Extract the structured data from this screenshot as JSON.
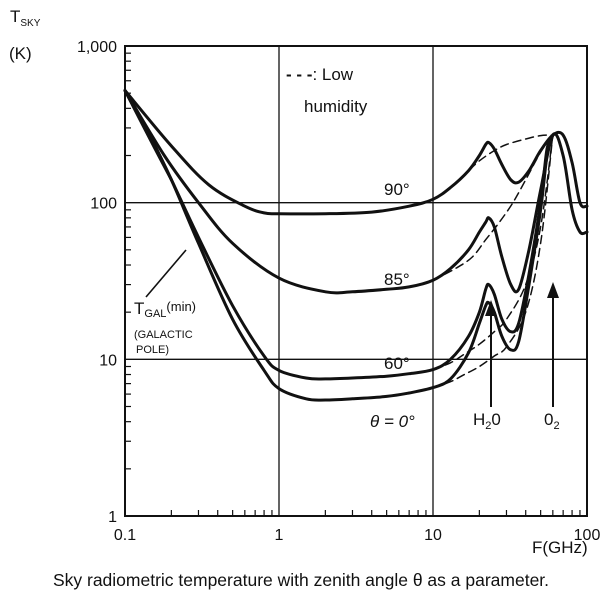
{
  "chart_data": {
    "type": "line",
    "x_scale": "log",
    "y_scale": "log",
    "xlim": [
      0.1,
      100
    ],
    "ylim": [
      1,
      1000
    ],
    "x_ticks": [
      0.1,
      1,
      10,
      100
    ],
    "x_tick_labels": [
      "0.1",
      "1",
      "10",
      "100"
    ],
    "y_ticks": [
      1,
      10,
      100,
      1000
    ],
    "y_tick_labels": [
      "1",
      "10",
      "100",
      "1,000"
    ],
    "grid": "major decades only",
    "xlabel": "F(GHz)",
    "ylabel_main": "T",
    "ylabel_sub": "SKY",
    "ylabel_unit": "(K)",
    "legend": {
      "dash": "- - -",
      "line1": ": Low",
      "line2": "humidity",
      "placement": "top-center"
    },
    "series": [
      {
        "name": "90°",
        "style": "solid",
        "x": [
          0.1,
          0.2,
          0.35,
          0.6,
          0.8,
          1,
          2,
          4,
          7,
          10,
          13,
          17,
          20,
          22,
          23,
          25,
          28,
          32,
          36,
          42,
          50,
          60,
          70,
          80,
          90,
          100
        ],
        "y": [
          520,
          230,
          130,
          95,
          86,
          85,
          85,
          87,
          95,
          105,
          125,
          160,
          200,
          235,
          242,
          220,
          175,
          140,
          135,
          160,
          215,
          270,
          270,
          180,
          100,
          95
        ]
      },
      {
        "name": "85°",
        "style": "solid",
        "x": [
          0.1,
          0.18,
          0.3,
          0.5,
          1,
          2,
          3,
          5,
          7,
          10,
          13,
          17,
          20,
          22,
          23,
          25,
          28,
          32,
          36,
          42,
          50,
          60,
          70,
          80,
          90,
          100
        ],
        "y": [
          520,
          200,
          100,
          55,
          33,
          27,
          27,
          28,
          29,
          32,
          38,
          50,
          65,
          75,
          80,
          70,
          45,
          30,
          28,
          50,
          120,
          270,
          200,
          90,
          65,
          65
        ]
      },
      {
        "name": "60°",
        "style": "solid",
        "x": [
          0.1,
          0.15,
          0.2,
          0.3,
          0.5,
          0.8,
          1,
          1.5,
          2,
          3,
          5,
          7,
          10,
          13,
          17,
          20,
          22,
          23,
          25,
          28,
          32,
          36,
          42,
          50,
          55,
          60
        ],
        "y": [
          520,
          250,
          140,
          60,
          22,
          10.5,
          8.5,
          7.6,
          7.5,
          7.6,
          7.8,
          8.1,
          8.6,
          10,
          14,
          20,
          28,
          30,
          26,
          18,
          15,
          17,
          35,
          100,
          220,
          270
        ]
      },
      {
        "name": "θ = 0°",
        "style": "solid",
        "x": [
          0.1,
          0.15,
          0.2,
          0.3,
          0.5,
          0.8,
          1,
          1.5,
          2,
          3,
          5,
          7,
          10,
          13,
          17,
          20,
          22,
          23,
          25,
          28,
          32,
          36,
          42,
          50,
          55,
          60
        ],
        "y": [
          520,
          250,
          140,
          55,
          18,
          8.5,
          6.5,
          5.6,
          5.5,
          5.6,
          5.8,
          6.1,
          6.6,
          7.5,
          11,
          17,
          22,
          23,
          20,
          14,
          11.5,
          13,
          30,
          90,
          200,
          270
        ]
      },
      {
        "name": "90° low humidity",
        "style": "dashed",
        "x": [
          13,
          17,
          20,
          25,
          30,
          40,
          50,
          60
        ],
        "y": [
          125,
          160,
          185,
          215,
          235,
          255,
          268,
          270
        ]
      },
      {
        "name": "85° low humidity",
        "style": "dashed",
        "x": [
          10,
          14,
          18,
          22,
          27,
          33,
          40,
          50,
          60
        ],
        "y": [
          32,
          38,
          45,
          58,
          75,
          100,
          140,
          210,
          270
        ]
      },
      {
        "name": "60° low humidity",
        "style": "dashed",
        "x": [
          10,
          13,
          16,
          20,
          25,
          30,
          40,
          50,
          60
        ],
        "y": [
          8.6,
          9.5,
          10.8,
          12.5,
          15,
          18,
          30,
          70,
          270
        ]
      },
      {
        "name": "θ = 0° low humidity",
        "style": "dashed",
        "x": [
          10,
          13,
          16,
          20,
          25,
          30,
          40,
          50,
          60
        ],
        "y": [
          6.6,
          7.2,
          8,
          9,
          10.5,
          12,
          20,
          55,
          270
        ]
      },
      {
        "name": "TGAL(min)",
        "style": "solid",
        "x": [
          0.1,
          0.15,
          0.2
        ],
        "y": [
          520,
          240,
          140
        ]
      }
    ],
    "annotations": {
      "label_90": "90°",
      "label_85": "85°",
      "label_60": "60°",
      "label_0": "θ = 0°",
      "tgal_main": "T",
      "tgal_sub": "GAL",
      "tgal_paren": "(min)",
      "galactic_1": "(GALACTIC",
      "galactic_2": "POLE)",
      "h2o_main": "H",
      "h2o_sub": "2",
      "h2o_end": "0",
      "o2_main": "0",
      "o2_sub": "2"
    }
  },
  "caption": "Sky radiometric temperature with zenith angle θ as a parameter."
}
